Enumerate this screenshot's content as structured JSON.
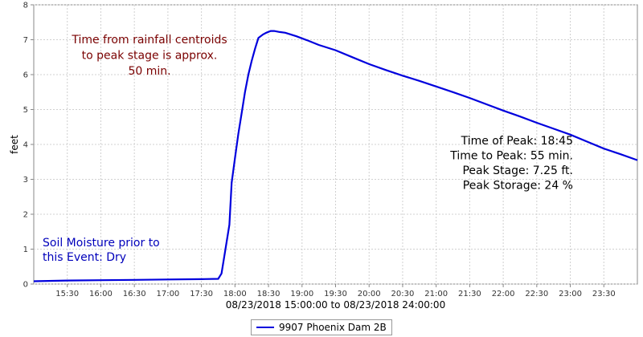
{
  "chart_data": {
    "type": "line",
    "ylabel": "feet",
    "xlabel": "08/23/2018 15:00:00 to 08/23/2018 24:00:00",
    "ylim": [
      0,
      8
    ],
    "yticks": [
      0,
      1,
      2,
      3,
      4,
      5,
      6,
      7,
      8
    ],
    "xlim": [
      "15:00",
      "24:00"
    ],
    "xticks": [
      "15:30",
      "16:00",
      "16:30",
      "17:00",
      "17:30",
      "18:00",
      "18:30",
      "19:00",
      "19:30",
      "20:00",
      "20:30",
      "21:00",
      "21:30",
      "22:00",
      "22:30",
      "23:00",
      "23:30"
    ],
    "grid": true,
    "legend_position": "bottom-center",
    "series": [
      {
        "name": "9907 Phoenix Dam 2B",
        "color": "#0000dd",
        "x": [
          "15:00",
          "15:30",
          "16:00",
          "16:30",
          "17:00",
          "17:30",
          "17:45",
          "17:48",
          "17:51",
          "17:55",
          "17:57",
          "18:00",
          "18:03",
          "18:06",
          "18:09",
          "18:12",
          "18:15",
          "18:18",
          "18:21",
          "18:25",
          "18:28",
          "18:32",
          "18:35",
          "18:40",
          "18:45",
          "18:55",
          "19:05",
          "19:15",
          "19:30",
          "19:45",
          "20:00",
          "20:15",
          "20:30",
          "20:45",
          "21:00",
          "21:15",
          "21:30",
          "21:45",
          "22:00",
          "22:15",
          "22:30",
          "22:45",
          "23:00",
          "23:15",
          "23:30",
          "23:45",
          "24:00"
        ],
        "y": [
          0.08,
          0.1,
          0.11,
          0.12,
          0.13,
          0.14,
          0.15,
          0.3,
          0.9,
          1.7,
          2.9,
          3.6,
          4.3,
          4.9,
          5.5,
          6.0,
          6.4,
          6.75,
          7.05,
          7.15,
          7.2,
          7.25,
          7.25,
          7.22,
          7.2,
          7.1,
          6.98,
          6.85,
          6.7,
          6.5,
          6.3,
          6.13,
          5.97,
          5.82,
          5.66,
          5.5,
          5.33,
          5.15,
          4.97,
          4.8,
          4.62,
          4.45,
          4.28,
          4.08,
          3.88,
          3.72,
          3.55
        ]
      }
    ],
    "annotations": [
      {
        "lines": [
          "Time from rainfall centroids",
          "to peak stage is approx.",
          "50 min."
        ],
        "color": "#7a0000",
        "align": "center"
      },
      {
        "lines": [
          "Time of Peak: 18:45",
          "Time to Peak: 55 min.",
          "Peak Stage: 7.25 ft.",
          "Peak Storage: 24 %"
        ],
        "color": "#000000",
        "align": "right"
      },
      {
        "lines": [
          "Soil Moisture prior to",
          "this Event: Dry"
        ],
        "color": "#0000bb",
        "align": "left"
      }
    ]
  }
}
